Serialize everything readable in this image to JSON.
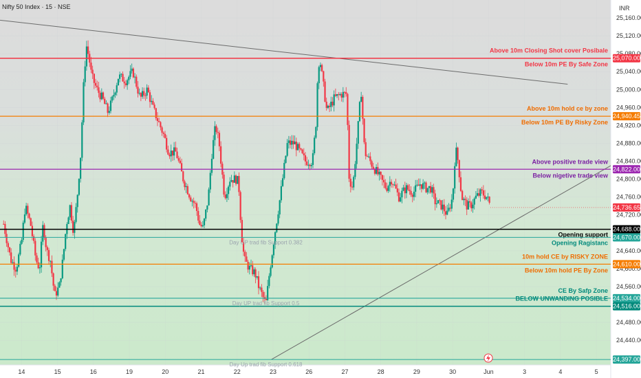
{
  "chart_data": {
    "type": "candlestick",
    "title": "Nifty 50 Index · 15 · NSE",
    "currency": "INR",
    "ylim": [
      24385,
      25200
    ],
    "y_ticks": [
      25160,
      25120,
      25080,
      25040,
      25000,
      24960,
      24920,
      24880,
      24840,
      24800,
      24760,
      24720,
      24640,
      24600,
      24560,
      24480,
      24440
    ],
    "x_ticks": [
      {
        "label": "14",
        "pos": 0.5
      },
      {
        "label": "15",
        "pos": 1.5
      },
      {
        "label": "16",
        "pos": 2.5
      },
      {
        "label": "19",
        "pos": 3.5
      },
      {
        "label": "20",
        "pos": 4.5
      },
      {
        "label": "21",
        "pos": 5.5
      },
      {
        "label": "22",
        "pos": 6.5
      },
      {
        "label": "23",
        "pos": 7.5
      },
      {
        "label": "26",
        "pos": 8.5
      },
      {
        "label": "27",
        "pos": 9.5
      },
      {
        "label": "28",
        "pos": 10.5
      },
      {
        "label": "29",
        "pos": 11.5
      },
      {
        "label": "30",
        "pos": 12.5
      },
      {
        "label": "Jun",
        "pos": 13.5
      },
      {
        "label": "3",
        "pos": 14.5
      },
      {
        "label": "4",
        "pos": 15.5
      },
      {
        "label": "5",
        "pos": 16.5
      }
    ],
    "xlim": [
      -0.1,
      16.9
    ],
    "current_price": "24,736.65",
    "up_color": "#089981",
    "down_color": "#f23645",
    "path": [
      [
        0.0,
        24700
      ],
      [
        0.1,
        24660
      ],
      [
        0.2,
        24620
      ],
      [
        0.35,
        24600
      ],
      [
        0.5,
        24660
      ],
      [
        0.6,
        24740
      ],
      [
        0.75,
        24700
      ],
      [
        0.9,
        24620
      ],
      [
        1.0,
        24600
      ],
      [
        1.1,
        24700
      ],
      [
        1.2,
        24640
      ],
      [
        1.3,
        24620
      ],
      [
        1.42,
        24540
      ],
      [
        1.55,
        24560
      ],
      [
        1.65,
        24620
      ],
      [
        1.75,
        24700
      ],
      [
        1.85,
        24740
      ],
      [
        1.95,
        24680
      ],
      [
        2.05,
        24760
      ],
      [
        2.15,
        24860
      ],
      [
        2.22,
        25000
      ],
      [
        2.3,
        25100
      ],
      [
        2.38,
        25070
      ],
      [
        2.45,
        25030
      ],
      [
        2.6,
        25000
      ],
      [
        2.75,
        24980
      ],
      [
        2.9,
        24950
      ],
      [
        3.0,
        24970
      ],
      [
        3.2,
        25030
      ],
      [
        3.4,
        25020
      ],
      [
        3.6,
        25040
      ],
      [
        3.8,
        24980
      ],
      [
        4.0,
        25000
      ],
      [
        4.15,
        24960
      ],
      [
        4.3,
        24930
      ],
      [
        4.45,
        24900
      ],
      [
        4.6,
        24860
      ],
      [
        4.8,
        24860
      ],
      [
        5.0,
        24800
      ],
      [
        5.2,
        24760
      ],
      [
        5.35,
        24740
      ],
      [
        5.45,
        24700
      ],
      [
        5.55,
        24690
      ],
      [
        5.7,
        24760
      ],
      [
        5.8,
        24860
      ],
      [
        5.9,
        24920
      ],
      [
        6.0,
        24880
      ],
      [
        6.15,
        24760
      ],
      [
        6.3,
        24800
      ],
      [
        6.5,
        24800
      ],
      [
        6.55,
        24780
      ],
      [
        6.62,
        24680
      ],
      [
        6.7,
        24620
      ],
      [
        6.85,
        24600
      ],
      [
        7.0,
        24590
      ],
      [
        7.1,
        24560
      ],
      [
        7.2,
        24540
      ],
      [
        7.3,
        24520
      ],
      [
        7.4,
        24590
      ],
      [
        7.55,
        24680
      ],
      [
        7.7,
        24760
      ],
      [
        7.8,
        24820
      ],
      [
        7.9,
        24880
      ],
      [
        8.1,
        24880
      ],
      [
        8.25,
        24860
      ],
      [
        8.4,
        24840
      ],
      [
        8.6,
        24840
      ],
      [
        8.7,
        24930
      ],
      [
        8.75,
        25050
      ],
      [
        8.8,
        25070
      ],
      [
        8.9,
        25010
      ],
      [
        9.0,
        24950
      ],
      [
        9.2,
        24980
      ],
      [
        9.4,
        24990
      ],
      [
        9.55,
        24990
      ],
      [
        9.62,
        24800
      ],
      [
        9.72,
        24780
      ],
      [
        9.85,
        24900
      ],
      [
        9.95,
        25000
      ],
      [
        10.05,
        24860
      ],
      [
        10.2,
        24840
      ],
      [
        10.35,
        24820
      ],
      [
        10.5,
        24800
      ],
      [
        10.65,
        24780
      ],
      [
        10.8,
        24800
      ],
      [
        11.0,
        24760
      ],
      [
        11.2,
        24780
      ],
      [
        11.4,
        24770
      ],
      [
        11.6,
        24790
      ],
      [
        11.75,
        24780
      ],
      [
        11.9,
        24780
      ],
      [
        12.0,
        24750
      ],
      [
        12.2,
        24740
      ],
      [
        12.35,
        24720
      ],
      [
        12.5,
        24760
      ],
      [
        12.58,
        24870
      ],
      [
        12.65,
        24840
      ],
      [
        12.75,
        24760
      ],
      [
        12.9,
        24740
      ],
      [
        13.0,
        24740
      ],
      [
        13.15,
        24760
      ],
      [
        13.3,
        24770
      ],
      [
        13.45,
        24760
      ],
      [
        13.55,
        24740
      ]
    ],
    "levels": [
      {
        "price": 25070,
        "color": "#f23645",
        "width": 1.5,
        "labels": [
          "Above 10m Closing Shot cover Posibale",
          "Below 10m PE By Safe Zone"
        ],
        "badge": "25,070.00"
      },
      {
        "price": 24940.45,
        "color": "#f57c00",
        "width": 1.2,
        "labels": [
          "Above 10m hold ce by zone",
          "Below 10m PE By Risky Zone"
        ],
        "badge": "24,940.45"
      },
      {
        "price": 24822,
        "color": "#9c27b0",
        "width": 1.2,
        "labels": [
          "Above positive trade view",
          "Below nigetive trade view"
        ],
        "badge": "24,822.00"
      },
      {
        "price": 24688,
        "color": "#000000",
        "width": 1.5,
        "labels": [
          "Opening support"
        ],
        "badge": "24,688.00"
      },
      {
        "price": 24670,
        "color": "#26a69a",
        "width": 1.0,
        "labels": [
          "Opening Ragistanc"
        ],
        "badge": "24,670.00"
      },
      {
        "price": 24610,
        "color": "#f57c00",
        "width": 1.2,
        "labels": [
          "10m hold CE by RISKY ZONE",
          "Below 10m hold PE By Zone"
        ],
        "badge": "24,610.00"
      },
      {
        "price": 24534,
        "color": "#26a69a",
        "width": 1.2,
        "labels": [
          "CE By Safp Zone"
        ],
        "badge": "24,534.00"
      },
      {
        "price": 24516,
        "color": "#00897b",
        "width": 1.5,
        "labels": [
          "BELOW UNWANDING POSIBLE"
        ],
        "badge": "24,516.00"
      },
      {
        "price": 24397,
        "color": "#26a69a",
        "width": 1.0,
        "labels": [],
        "badge": "24,397.00"
      }
    ],
    "fib_labels": [
      {
        "text": "Day UP trad fib Support 0.382",
        "x": 7.3,
        "price": 24670
      },
      {
        "text": "Day UP trad fib Support 0.5",
        "x": 7.3,
        "price": 24534
      },
      {
        "text": "Day Up trad fib Support 0.618",
        "x": 7.3,
        "price": 24397
      }
    ],
    "trendlines": [
      {
        "from": [
          -0.1,
          25155
        ],
        "to": [
          15.7,
          25012
        ]
      },
      {
        "from": [
          7.45,
          24397
        ],
        "to": [
          16.9,
          24830
        ]
      }
    ],
    "colors": {
      "label_red": "#f23645",
      "label_orange": "#ef6c00",
      "label_purple": "#7b1fa2",
      "label_black": "#000000",
      "label_teal": "#00897b",
      "fill_green": "#cde9cd",
      "fill_neutral": "#dcdcdc"
    }
  }
}
